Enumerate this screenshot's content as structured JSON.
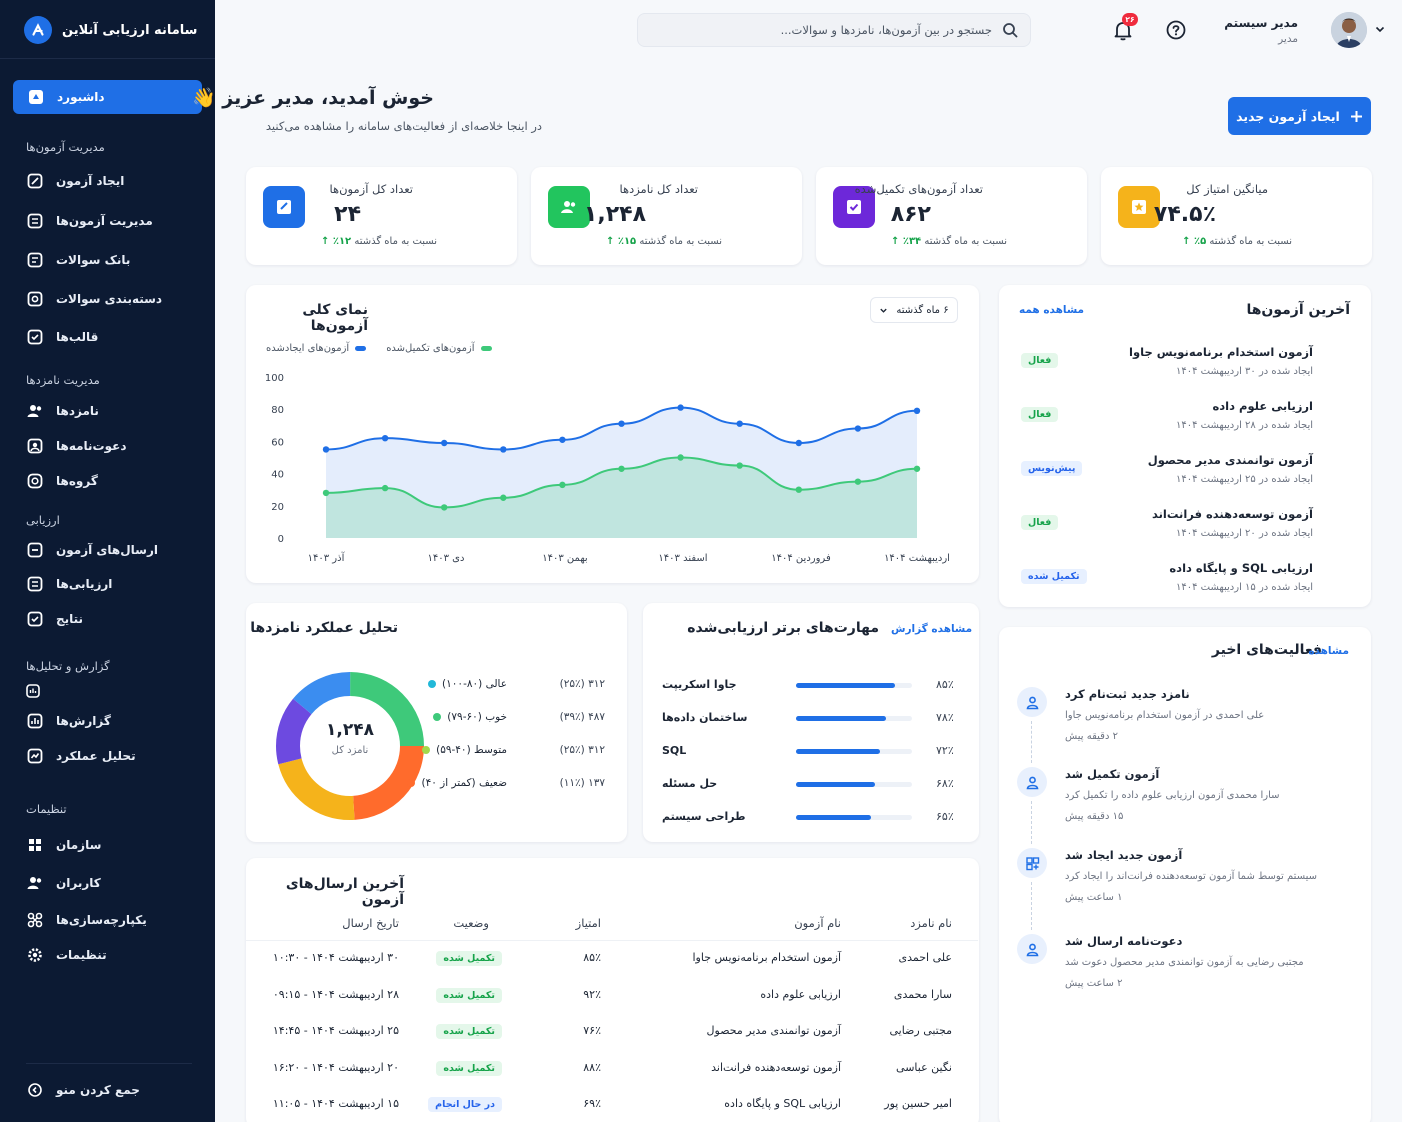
{
  "brand": {
    "title": "سامانه ارزیابی آنلاین"
  },
  "sidebar": {
    "active": "داشبورد",
    "sections": [
      {
        "title": "مدیریت آزمون‌ها",
        "items": [
          "ایجاد آزمون",
          "مدیریت آزمون‌ها",
          "بانک سوالات",
          "دسته‌بندی سوالات",
          "قالب‌ها"
        ]
      },
      {
        "title": "مدیریت نامزدها",
        "items": [
          "نامزدها",
          "دعوت‌نامه‌ها",
          "گروه‌ها"
        ]
      },
      {
        "title": "ارزیابی",
        "items": [
          "ارسال‌های آزمون",
          "ارزیابی‌ها",
          "نتایج"
        ]
      },
      {
        "title": "گزارش و تحلیل‌ها",
        "items": [
          "گزارش‌ها",
          "تحلیل عملکرد"
        ]
      },
      {
        "title": "تنظیمات",
        "items": [
          "سازمان",
          "کاربران",
          "یکپارچه‌سازی‌ها",
          "تنظیمات"
        ]
      }
    ],
    "collapse": "جمع کردن منو"
  },
  "topbar": {
    "search_placeholder": "جستجو در بین آزمون‌ها، نامزدها و سوالات...",
    "notif_count": "۲۶",
    "user_name": "مدیر سیستم",
    "user_role": "مدیر"
  },
  "header": {
    "welcome": "خوش آمدید، مدیر عزیز 👋",
    "subtitle": "در اینجا خلاصه‌ای از فعالیت‌های سامانه را مشاهده می‌کنید",
    "new_exam": "ایجاد آزمون جدید"
  },
  "stats": [
    {
      "label": "تعداد کل آزمون‌ها",
      "value": "۲۴",
      "trend": "۱۲٪",
      "trend_text": "نسبت به ماه گذشته",
      "color": "#1f6fe6",
      "icon": "exam-icon"
    },
    {
      "label": "تعداد کل نامزدها",
      "value": "۱,۲۴۸",
      "trend": "۱۵٪",
      "trend_text": "نسبت به ماه گذشته",
      "color": "#22c55e",
      "icon": "users-icon"
    },
    {
      "label": "تعداد آزمون‌های تکمیل‌شده",
      "value": "۸۶۲",
      "trend": "۳۴٪",
      "trend_text": "نسبت به ماه گذشته",
      "color": "#6d28d9",
      "icon": "check-exam-icon"
    },
    {
      "label": "میانگین امتیاز کل",
      "value": "۷۴.۵٪",
      "trend": "۵٪",
      "trend_text": "نسبت به ماه گذشته",
      "color": "#f5b31b",
      "icon": "star-icon"
    }
  ],
  "overview": {
    "title": "نمای کلی آزمون‌ها",
    "range": "۶ ماه گذشته",
    "legend_created": "آزمون‌های ایجادشده",
    "legend_completed": "آزمون‌های تکمیل‌شده"
  },
  "chart_data": {
    "type": "area",
    "categories": [
      "آذر ۱۴۰۳",
      "دی ۱۴۰۳",
      "بهمن ۱۴۰۳",
      "اسفند ۱۴۰۳",
      "فروردین ۱۴۰۴",
      "اردیبهشت ۱۴۰۴"
    ],
    "x": [
      0,
      1,
      2,
      3,
      4,
      5,
      6,
      7,
      8,
      9,
      10
    ],
    "series": [
      {
        "name": "آزمون‌های ایجادشده",
        "color": "#1f6fe6",
        "values": [
          55,
          62,
          59,
          55,
          61,
          71,
          81,
          71,
          59,
          68,
          79
        ]
      },
      {
        "name": "آزمون‌های تکمیل‌شده",
        "color": "#3ec97a",
        "values": [
          28,
          31,
          19,
          25,
          33,
          43,
          50,
          45,
          30,
          35,
          43
        ]
      }
    ],
    "yticks": [
      0,
      20,
      40,
      60,
      80,
      100
    ],
    "ylim": [
      0,
      100
    ]
  },
  "recent_exams": {
    "title": "آخرین آزمون‌ها",
    "view_all": "مشاهده همه",
    "items": [
      {
        "title": "آزمون استخدام برنامه‌نویس جاوا",
        "date": "ایجاد شده در ۳۰ اردیبهشت ۱۴۰۴",
        "status": "فعال",
        "tone": "green"
      },
      {
        "title": "ارزیابی علوم داده",
        "date": "ایجاد شده در ۲۸ اردیبهشت ۱۴۰۴",
        "status": "فعال",
        "tone": "green"
      },
      {
        "title": "آزمون توانمندی مدیر محصول",
        "date": "ایجاد شده در ۲۵ اردیبهشت ۱۴۰۴",
        "status": "پیش‌نویس",
        "tone": "blue"
      },
      {
        "title": "آزمون توسعه‌دهنده فرانت‌اند",
        "date": "ایجاد شده در ۲۰ اردیبهشت ۱۴۰۴",
        "status": "فعال",
        "tone": "green"
      },
      {
        "title": "ارزیابی SQL و پایگاه داده",
        "date": "ایجاد شده در ۱۵ اردیبهشت ۱۴۰۴",
        "status": "تکمیل شده",
        "tone": "blue"
      }
    ]
  },
  "performance": {
    "title": "تحلیل عملکرد نامزدها",
    "total": "۱,۲۴۸",
    "total_label": "نامزد کل",
    "rows": [
      {
        "label": "عالی (۸۰-۱۰۰)",
        "value": "۳۱۲ (۲۵٪)",
        "color": "#3ec97a",
        "pct": 25
      },
      {
        "label": "خوب (۶۰-۷۹)",
        "value": "۴۸۷ (۳۹٪)",
        "color": "#ff6b2c",
        "pct": 39
      },
      {
        "label": "متوسط (۴۰-۵۹)",
        "value": "۳۱۲ (۲۵٪)",
        "color": "#f5b31b",
        "pct": 25
      },
      {
        "label": "ضعیف (کمتر از ۴۰)",
        "value": "۱۳۷ (۱۱٪)",
        "color": "#6d4ae0",
        "pct": 11
      }
    ],
    "legend_colors": [
      "#22b8d8",
      "#3ec97a",
      "#a3d94a",
      "#ff6b2c"
    ]
  },
  "skills": {
    "title": "مهارت‌های برتر ارزیابی‌شده",
    "report": "مشاهده گزارش",
    "items": [
      {
        "name": "جاوا اسکریپت",
        "pct": "۸۵٪",
        "value": 85
      },
      {
        "name": "ساختمان داده‌ها",
        "pct": "۷۸٪",
        "value": 78
      },
      {
        "name": "SQL",
        "pct": "۷۲٪",
        "value": 72
      },
      {
        "name": "حل مسئله",
        "pct": "۶۸٪",
        "value": 68
      },
      {
        "name": "طراحی سیستم",
        "pct": "۶۵٪",
        "value": 65
      }
    ]
  },
  "activity": {
    "title": "فعالیت‌های اخیر",
    "view": "مشاهده",
    "items": [
      {
        "title": "نامزد جدید ثبت‌نام کرد",
        "desc": "علی احمدی در آزمون استخدام برنامه‌نویس جاوا",
        "time": "۲ دقیقه پیش",
        "icon": "user-icon"
      },
      {
        "title": "آزمون تکمیل شد",
        "desc": "سارا محمدی آزمون ارزیابی علوم داده را تکمیل کرد",
        "time": "۱۵ دقیقه پیش",
        "icon": "user-check-icon"
      },
      {
        "title": "آزمون جدید ایجاد شد",
        "desc": "سیستم توسط شما آزمون توسعه‌دهنده فرانت‌اند را ایجاد کرد",
        "time": "۱ ساعت پیش",
        "icon": "exam-add-icon"
      },
      {
        "title": "دعوت‌نامه ارسال شد",
        "desc": "مجتبی رضایی به آزمون توانمندی مدیر محصول دعوت شد",
        "time": "۲ ساعت پیش",
        "icon": "user-icon"
      }
    ]
  },
  "submissions": {
    "title": "آخرین ارسال‌های آزمون",
    "headers": [
      "نام نامزد",
      "نام آزمون",
      "امتیاز",
      "وضعیت",
      "تاریخ ارسال"
    ],
    "rows": [
      [
        "علی احمدی",
        "آزمون استخدام برنامه‌نویس جاوا",
        "۸۵٪",
        "تکمیل شده",
        "۳۰ اردیبهشت ۱۴۰۴ - ۱۰:۳۰"
      ],
      [
        "سارا محمدی",
        "ارزیابی علوم داده",
        "۹۲٪",
        "تکمیل شده",
        "۲۸ اردیبهشت ۱۴۰۴ - ۰۹:۱۵"
      ],
      [
        "مجتبی رضایی",
        "آزمون توانمندی مدیر محصول",
        "۷۶٪",
        "تکمیل شده",
        "۲۵ اردیبهشت ۱۴۰۴ - ۱۴:۴۵"
      ],
      [
        "نگین عباسی",
        "آزمون توسعه‌دهنده فرانت‌اند",
        "۸۸٪",
        "تکمیل شده",
        "۲۰ اردیبهشت ۱۴۰۴ - ۱۶:۲۰"
      ],
      [
        "امیر حسین پور",
        "ارزیابی SQL و پایگاه داده",
        "۶۹٪",
        "در حال انجام",
        "۱۵ اردیبهشت ۱۴۰۴ - ۱۱:۰۵"
      ]
    ]
  }
}
